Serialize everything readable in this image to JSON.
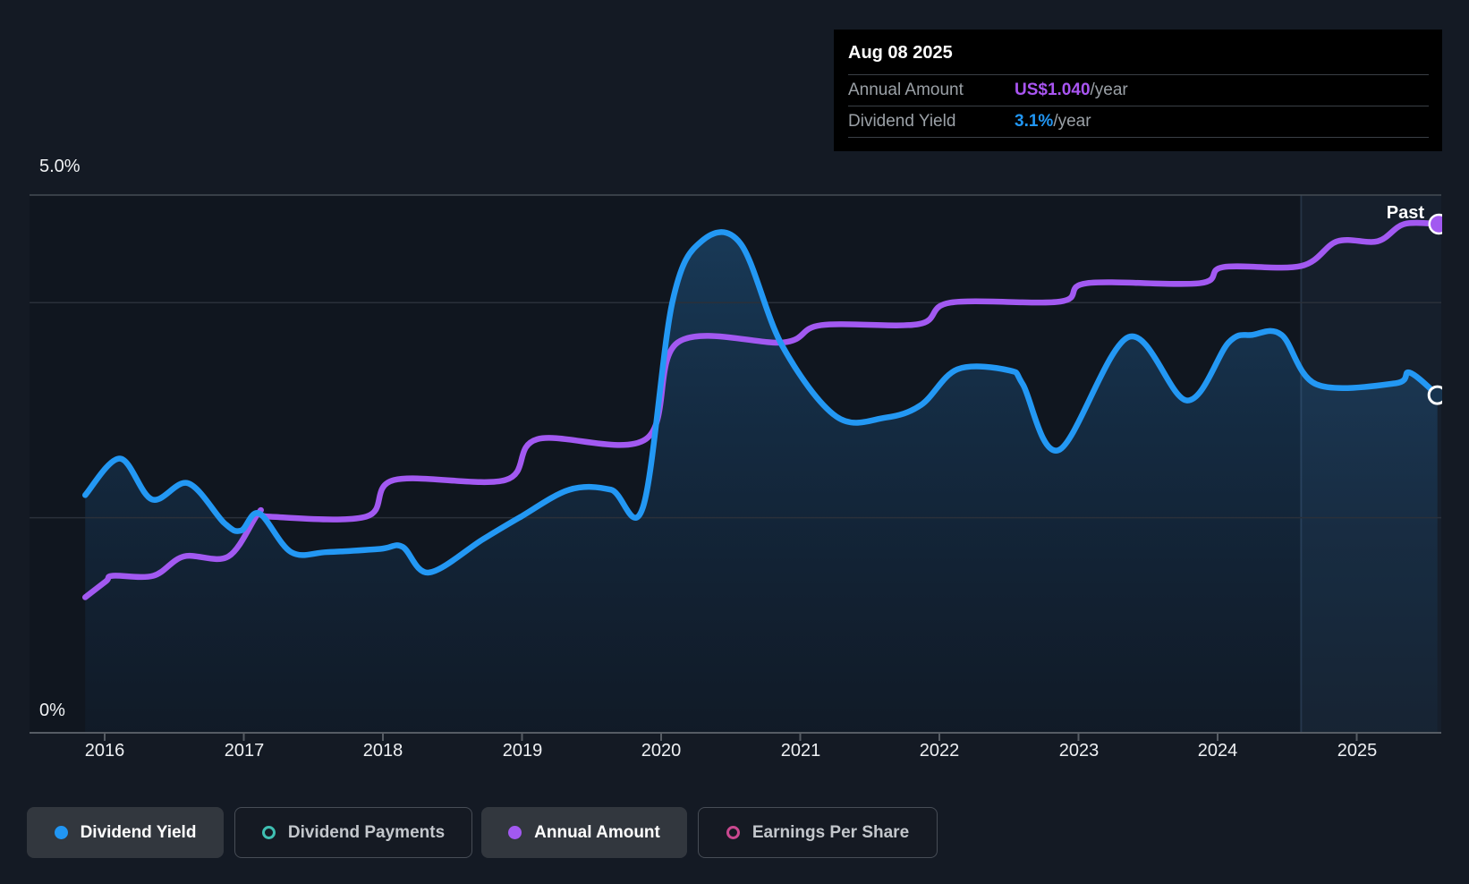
{
  "tooltip": {
    "date": "Aug 08 2025",
    "rows": [
      {
        "label": "Annual Amount",
        "value": "US$1.040",
        "unit": "/year",
        "value_color": "#a955f2"
      },
      {
        "label": "Dividend Yield",
        "value": "3.1%",
        "unit": "/year",
        "value_color": "#2196f3"
      }
    ]
  },
  "chart_data": {
    "type": "line",
    "x_axis": {
      "ticks": [
        2016,
        2017,
        2018,
        2019,
        2020,
        2021,
        2022,
        2023,
        2024,
        2025
      ],
      "range": [
        2015.45,
        2025.65
      ]
    },
    "y_axis": {
      "unit": "%",
      "range": [
        0,
        5
      ],
      "labels": [
        {
          "value": 5.0,
          "label": "5.0%"
        },
        {
          "value": 0,
          "label": "0%"
        }
      ],
      "minor_gridlines": [
        4.0,
        2.0
      ]
    },
    "past_label": "Past",
    "past_boundary_year": 2024.6,
    "series": [
      {
        "name": "Annual Amount",
        "color": "#a259f1",
        "area": false,
        "end_dot": "filled",
        "points": [
          [
            2015.86,
            1.26
          ],
          [
            2016.01,
            1.41
          ],
          [
            2016.06,
            1.46
          ],
          [
            2016.35,
            1.46
          ],
          [
            2016.57,
            1.64
          ],
          [
            2016.89,
            1.64
          ],
          [
            2017.11,
            2.05
          ],
          [
            2017.18,
            2.01
          ],
          [
            2017.88,
            2.01
          ],
          [
            2018.08,
            2.35
          ],
          [
            2018.88,
            2.35
          ],
          [
            2019.11,
            2.73
          ],
          [
            2019.89,
            2.73
          ],
          [
            2020.12,
            3.63
          ],
          [
            2020.88,
            3.63
          ],
          [
            2021.15,
            3.79
          ],
          [
            2021.85,
            3.8
          ],
          [
            2022.08,
            4.0
          ],
          [
            2022.87,
            4.01
          ],
          [
            2023.06,
            4.18
          ],
          [
            2023.87,
            4.18
          ],
          [
            2024.04,
            4.33
          ],
          [
            2024.6,
            4.34
          ],
          [
            2024.86,
            4.57
          ],
          [
            2025.15,
            4.57
          ],
          [
            2025.34,
            4.73
          ],
          [
            2025.59,
            4.73
          ]
        ]
      },
      {
        "name": "Dividend Yield",
        "color": "#2398f4",
        "area": true,
        "end_dot": "open",
        "points": [
          [
            2015.86,
            2.21
          ],
          [
            2016.11,
            2.55
          ],
          [
            2016.34,
            2.17
          ],
          [
            2016.6,
            2.32
          ],
          [
            2016.86,
            1.95
          ],
          [
            2016.98,
            1.88
          ],
          [
            2017.11,
            2.04
          ],
          [
            2017.34,
            1.68
          ],
          [
            2017.6,
            1.68
          ],
          [
            2017.98,
            1.71
          ],
          [
            2018.14,
            1.73
          ],
          [
            2018.33,
            1.49
          ],
          [
            2018.72,
            1.8
          ],
          [
            2018.98,
            2.0
          ],
          [
            2019.34,
            2.26
          ],
          [
            2019.64,
            2.26
          ],
          [
            2019.87,
            2.1
          ],
          [
            2020.08,
            4.0
          ],
          [
            2020.29,
            4.57
          ],
          [
            2020.57,
            4.55
          ],
          [
            2020.87,
            3.6
          ],
          [
            2021.26,
            2.94
          ],
          [
            2021.61,
            2.93
          ],
          [
            2021.87,
            3.05
          ],
          [
            2022.13,
            3.38
          ],
          [
            2022.5,
            3.37
          ],
          [
            2022.6,
            3.24
          ],
          [
            2022.86,
            2.63
          ],
          [
            2023.36,
            3.68
          ],
          [
            2023.78,
            3.09
          ],
          [
            2024.08,
            3.63
          ],
          [
            2024.25,
            3.7
          ],
          [
            2024.46,
            3.7
          ],
          [
            2024.71,
            3.24
          ],
          [
            2025.28,
            3.25
          ],
          [
            2025.38,
            3.35
          ],
          [
            2025.58,
            3.14
          ]
        ]
      }
    ]
  },
  "legend": [
    {
      "label": "Dividend Yield",
      "color": "#2196f3",
      "marker": "filled",
      "active": true
    },
    {
      "label": "Dividend Payments",
      "color": "#3fbfb2",
      "marker": "ring",
      "active": false
    },
    {
      "label": "Annual Amount",
      "color": "#a259f1",
      "marker": "filled",
      "active": true
    },
    {
      "label": "Earnings Per Share",
      "color": "#c9488f",
      "marker": "ring",
      "active": false
    }
  ]
}
